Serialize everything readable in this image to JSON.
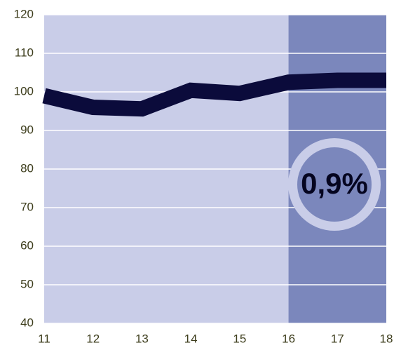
{
  "chart_data": {
    "type": "line",
    "x": [
      11,
      12,
      13,
      14,
      15,
      16,
      17,
      18
    ],
    "series": [
      {
        "name": null,
        "color": "#0b0b3b",
        "values": [
          99,
          96,
          95.6,
          100.4,
          99.6,
          102.5,
          103,
          103
        ]
      }
    ],
    "xlim": [
      11,
      18
    ],
    "xticks": [
      11,
      12,
      13,
      14,
      15,
      16,
      17,
      18
    ],
    "ylim": [
      40,
      120
    ],
    "yticks": [
      40,
      50,
      60,
      70,
      80,
      90,
      100,
      110,
      120
    ],
    "grid": true,
    "background_color": "#c9cde8",
    "highlight": {
      "from": 16,
      "color": "#7b87bc"
    },
    "annotation": {
      "text": "0,9%",
      "ring_color": "#c9cde8"
    }
  }
}
